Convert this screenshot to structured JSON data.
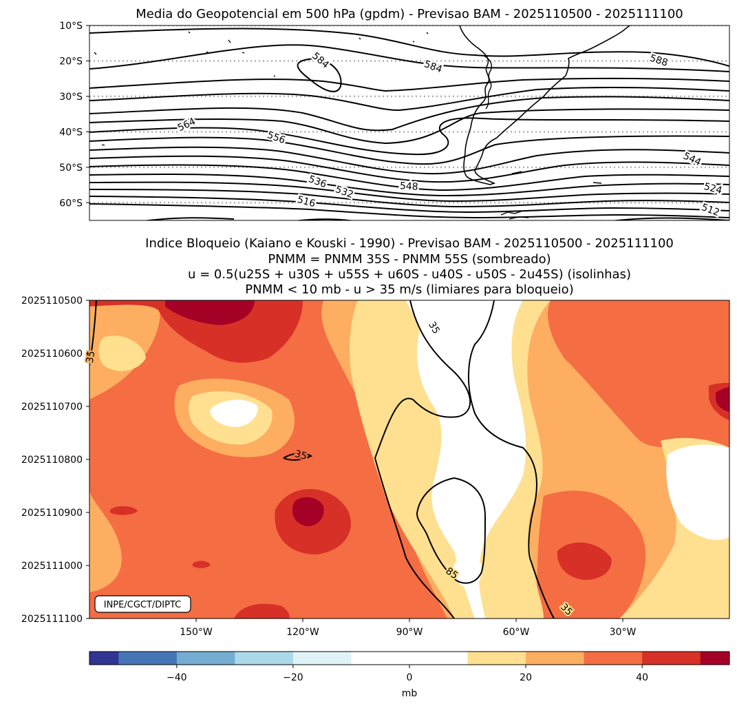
{
  "chart_data": [
    {
      "type": "contour-map",
      "title": "Media do Geopotencial em 500 hPa (gpdm) - Previsao BAM - 2025110500 - 2025111100",
      "y_ticks": [
        "10°S",
        "20°S",
        "30°S",
        "40°S",
        "50°S",
        "60°S"
      ],
      "y_range_deg": [
        -10,
        -65
      ],
      "x_range_deg": [
        -180,
        0
      ],
      "gridlines": "dotted latitude lines",
      "contour_labels": [
        "584",
        "584",
        "588",
        "564",
        "556",
        "544",
        "524",
        "536",
        "532",
        "548",
        "516",
        "512"
      ]
    },
    {
      "type": "filled-contour",
      "title_lines": [
        "Indice Bloqueio (Kaiano e Kouski - 1990) - Previsao BAM - 2025110500 - 2025111100",
        "PNMM = PNMM 35S - PNMM 55S (sombreado)",
        "u = 0.5(u25S + u30S + u55S + u60S - u40S - u50S - 2u45S) (isolinhas)",
        "PNMM < 10 mb - u > 35 m/s (limiares para bloqueio)"
      ],
      "y_ticks": [
        "2025110500",
        "2025110600",
        "2025110700",
        "2025110800",
        "2025110900",
        "2025111000",
        "2025111100"
      ],
      "x_ticks": [
        "150°W",
        "120°W",
        "90°W",
        "60°W",
        "30°W"
      ],
      "x_tick_values": [
        -150,
        -120,
        -90,
        -60,
        -30
      ],
      "x_range": [
        -180,
        0
      ],
      "contour_labels": [
        "35",
        "35",
        "35",
        "35",
        "85"
      ],
      "watermark": "INPE/CGCT/DIPTC"
    },
    {
      "type": "colorbar",
      "range": [
        -55,
        55
      ],
      "levels": [
        -55,
        -50,
        -40,
        -30,
        -20,
        -10,
        10,
        20,
        30,
        40,
        50,
        55
      ],
      "colors": [
        "#313695",
        "#4575b4",
        "#74add1",
        "#abd9e9",
        "#e0f3f8",
        "#ffffff",
        "#fee090",
        "#fdae61",
        "#f46d43",
        "#d73027",
        "#a50026"
      ],
      "ticks": [
        -40,
        -20,
        0,
        20,
        40
      ],
      "tick_labels": [
        "−40",
        "−20",
        "0",
        "20",
        "40"
      ],
      "label": "mb"
    }
  ]
}
